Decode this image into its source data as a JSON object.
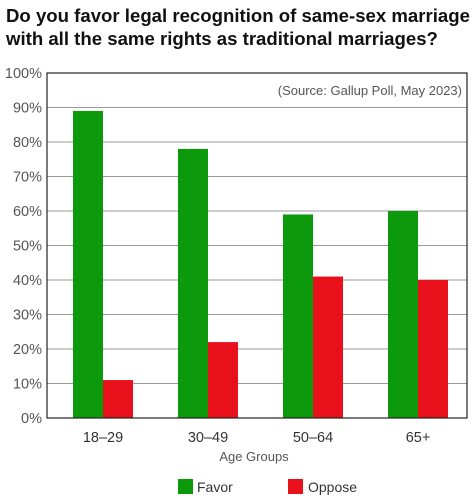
{
  "chart_data": {
    "type": "bar",
    "title": "Do you favor legal recognition of same-sex marriage with all the same rights as traditional marriages?",
    "title_lines": [
      "Do you favor legal recognition of same-sex marriage",
      "with all the same rights as traditional marriages?"
    ],
    "source": "(Source: Gallup Poll, May 2023)",
    "xlabel": "Age Groups",
    "ylabel": "",
    "categories": [
      "18–29",
      "30–49",
      "50–64",
      "65+"
    ],
    "series": [
      {
        "name": "Favor",
        "color": "#0c9a0c",
        "values": [
          89,
          78,
          59,
          60
        ]
      },
      {
        "name": "Oppose",
        "color": "#e8111b",
        "values": [
          11,
          22,
          41,
          40
        ]
      }
    ],
    "ylim": [
      0,
      100
    ],
    "yticks": [
      0,
      10,
      20,
      30,
      40,
      50,
      60,
      70,
      80,
      90,
      100
    ],
    "ytick_labels": [
      "0%",
      "10%",
      "20%",
      "30%",
      "40%",
      "50%",
      "60%",
      "70%",
      "80%",
      "90%",
      "100%"
    ],
    "grid": true,
    "legend_position": "bottom"
  }
}
